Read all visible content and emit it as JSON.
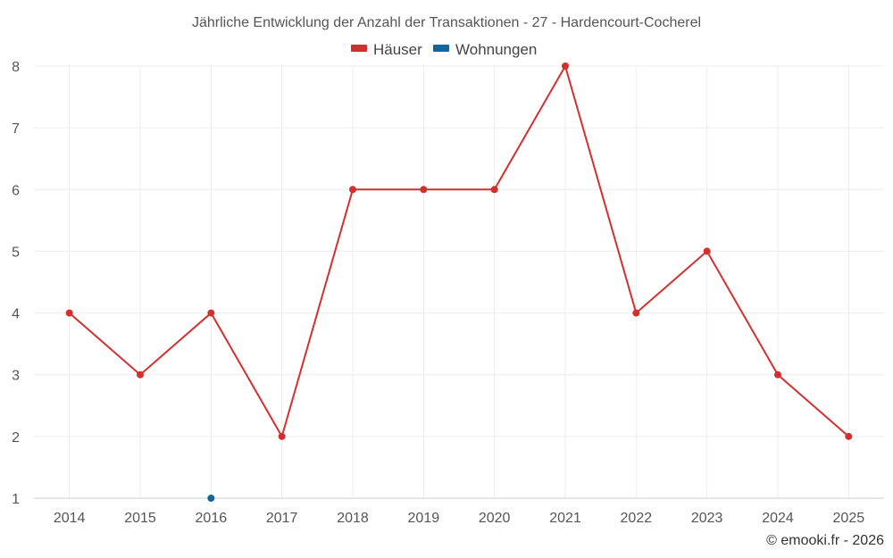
{
  "chart_data": {
    "type": "line",
    "title": "Jährliche Entwicklung der Anzahl der Transaktionen - 27 - Hardencourt-Cocherel",
    "x": [
      "2014",
      "2015",
      "2016",
      "2017",
      "2018",
      "2019",
      "2020",
      "2021",
      "2022",
      "2023",
      "2024",
      "2025"
    ],
    "ylim": [
      1,
      8
    ],
    "yticks": [
      1,
      2,
      3,
      4,
      5,
      6,
      7,
      8
    ],
    "grid": true,
    "legend_position": "top-center",
    "series": [
      {
        "name": "Häuser",
        "color": "#d32f2f",
        "values": [
          4,
          3,
          4,
          2,
          6,
          6,
          6,
          8,
          4,
          5,
          3,
          2
        ]
      },
      {
        "name": "Wohnungen",
        "color": "#1565a0",
        "values": [
          null,
          null,
          1,
          null,
          null,
          null,
          null,
          null,
          null,
          null,
          null,
          null
        ]
      }
    ],
    "credit": "© emooki.fr - 2026"
  }
}
